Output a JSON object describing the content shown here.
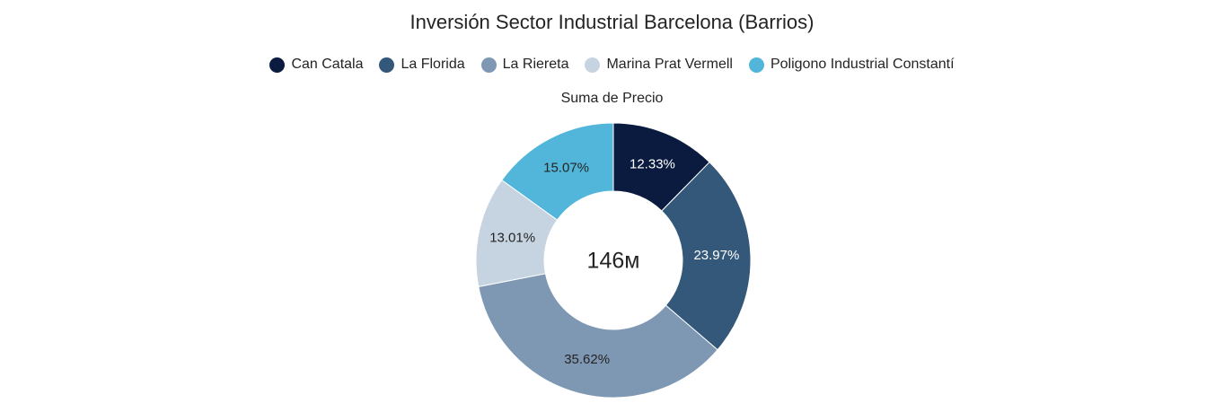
{
  "chart_data": {
    "type": "pie",
    "variant": "donut",
    "title": "Inversión Sector Industrial Barcelona (Barrios)",
    "subtitle": "Suma de Precio",
    "center_label": "146м",
    "legend_position": "top-center",
    "categories": [
      "Can Catala",
      "La Florida",
      "La Riereta",
      "Marina Prat Vermell",
      "Poligono Industrial Constantí"
    ],
    "values": [
      12.33,
      23.97,
      35.62,
      13.01,
      15.07
    ],
    "labels": [
      "12.33%",
      "23.97%",
      "35.62%",
      "13.01%",
      "15.07%"
    ],
    "colors": [
      "#0b1b3f",
      "#34587a",
      "#7e98b3",
      "#c6d4e2",
      "#52b6da"
    ],
    "label_colors": [
      "#ffffff",
      "#ffffff",
      "#252423",
      "#252423",
      "#252423"
    ]
  }
}
